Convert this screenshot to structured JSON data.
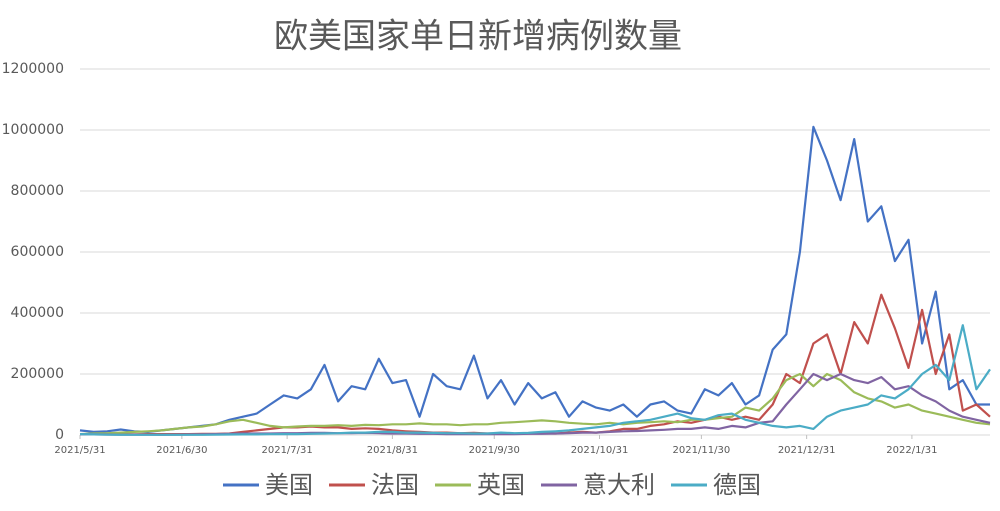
{
  "chart_data": {
    "type": "line",
    "title": "欧美国家单日新增病例数量",
    "x": [
      0,
      4,
      8,
      12,
      16,
      20,
      24,
      28,
      32,
      36,
      40,
      44,
      48,
      52,
      56,
      60,
      64,
      68,
      72,
      76,
      80,
      84,
      88,
      92,
      96,
      100,
      104,
      108,
      112,
      116,
      120,
      124,
      128,
      132,
      136,
      140,
      144,
      148,
      152,
      156,
      160,
      164,
      168,
      172,
      176,
      180,
      184,
      188,
      192,
      196,
      200,
      204,
      208,
      212,
      216,
      220,
      224,
      228,
      232,
      236,
      240,
      244,
      248,
      252,
      256,
      260,
      264,
      268
    ],
    "xlim": [
      0,
      268
    ],
    "xticks": [
      {
        "value": 0,
        "label": "2021/5/31"
      },
      {
        "value": 30,
        "label": "2021/6/30"
      },
      {
        "value": 61,
        "label": "2021/7/31"
      },
      {
        "value": 92,
        "label": "2021/8/31"
      },
      {
        "value": 122,
        "label": "2021/9/30"
      },
      {
        "value": 153,
        "label": "2021/10/31"
      },
      {
        "value": 183,
        "label": "2021/11/30"
      },
      {
        "value": 214,
        "label": "2021/12/31"
      },
      {
        "value": 245,
        "label": "2022/1/31"
      }
    ],
    "ylim": [
      0,
      1200000
    ],
    "yticks": [
      0,
      200000,
      400000,
      600000,
      800000,
      1000000,
      1200000
    ],
    "grid": true,
    "legend": "bottom",
    "series": [
      {
        "name": "美国",
        "color": "#4472c4",
        "values": [
          15000,
          10000,
          12000,
          18000,
          12000,
          10000,
          15000,
          20000,
          25000,
          30000,
          35000,
          50000,
          60000,
          70000,
          100000,
          130000,
          120000,
          150000,
          230000,
          110000,
          160000,
          150000,
          250000,
          170000,
          180000,
          60000,
          200000,
          160000,
          150000,
          260000,
          120000,
          180000,
          100000,
          170000,
          120000,
          140000,
          60000,
          110000,
          90000,
          80000,
          100000,
          60000,
          100000,
          110000,
          80000,
          70000,
          150000,
          130000,
          170000,
          100000,
          130000,
          280000,
          330000,
          600000,
          1010000,
          900000,
          770000,
          970000,
          700000,
          750000,
          570000,
          640000,
          300000,
          470000,
          150000,
          180000,
          100000,
          100000
        ]
      },
      {
        "name": "法国",
        "color": "#c0504d",
        "values": [
          3000,
          3000,
          4000,
          3000,
          2000,
          3000,
          3000,
          3000,
          3000,
          4000,
          4000,
          5000,
          10000,
          15000,
          20000,
          25000,
          25000,
          28000,
          25000,
          25000,
          20000,
          22000,
          20000,
          15000,
          12000,
          10000,
          8000,
          8000,
          6000,
          7000,
          5000,
          5000,
          4000,
          5000,
          6000,
          5000,
          8000,
          10000,
          8000,
          12000,
          20000,
          20000,
          30000,
          35000,
          45000,
          40000,
          50000,
          60000,
          50000,
          60000,
          50000,
          100000,
          200000,
          170000,
          300000,
          330000,
          200000,
          370000,
          300000,
          460000,
          350000,
          220000,
          410000,
          200000,
          330000,
          80000,
          100000,
          60000
        ]
      },
      {
        "name": "英国",
        "color": "#9bbb59",
        "values": [
          3000,
          5000,
          6000,
          8000,
          10000,
          12000,
          15000,
          20000,
          25000,
          28000,
          35000,
          45000,
          50000,
          40000,
          30000,
          25000,
          28000,
          30000,
          30000,
          32000,
          30000,
          33000,
          32000,
          35000,
          35000,
          38000,
          35000,
          35000,
          32000,
          35000,
          35000,
          40000,
          42000,
          45000,
          48000,
          45000,
          40000,
          37000,
          35000,
          40000,
          35000,
          40000,
          42000,
          45000,
          42000,
          50000,
          50000,
          55000,
          60000,
          90000,
          80000,
          120000,
          180000,
          200000,
          160000,
          200000,
          180000,
          140000,
          120000,
          110000,
          90000,
          100000,
          80000,
          70000,
          60000,
          50000,
          40000,
          35000
        ]
      },
      {
        "name": "意大利",
        "color": "#8064a2",
        "values": [
          2000,
          2000,
          1500,
          1000,
          1000,
          1000,
          800,
          1000,
          1500,
          2000,
          3000,
          4000,
          5000,
          5000,
          5000,
          6000,
          6000,
          7000,
          7000,
          6000,
          6000,
          7000,
          6000,
          5000,
          5000,
          4000,
          4000,
          3000,
          3000,
          3000,
          3000,
          3000,
          3000,
          4000,
          4000,
          5000,
          6000,
          8000,
          8000,
          10000,
          12000,
          13000,
          15000,
          17000,
          20000,
          20000,
          25000,
          20000,
          30000,
          25000,
          40000,
          45000,
          100000,
          150000,
          200000,
          180000,
          200000,
          180000,
          170000,
          190000,
          150000,
          160000,
          130000,
          110000,
          80000,
          60000,
          50000,
          40000
        ]
      },
      {
        "name": "德国",
        "color": "#4bacc6",
        "values": [
          3000,
          2000,
          1000,
          800,
          600,
          500,
          500,
          600,
          700,
          800,
          1000,
          1500,
          2000,
          2000,
          2500,
          3000,
          3000,
          4000,
          5000,
          6000,
          8000,
          8000,
          10000,
          10000,
          8000,
          8000,
          7000,
          6000,
          6000,
          5000,
          5000,
          8000,
          6000,
          7000,
          10000,
          12000,
          15000,
          20000,
          25000,
          30000,
          40000,
          45000,
          50000,
          60000,
          70000,
          55000,
          50000,
          65000,
          70000,
          50000,
          40000,
          30000,
          25000,
          30000,
          20000,
          60000,
          80000,
          90000,
          100000,
          130000,
          120000,
          150000,
          200000,
          230000,
          180000,
          360000,
          150000,
          215000
        ]
      }
    ]
  }
}
